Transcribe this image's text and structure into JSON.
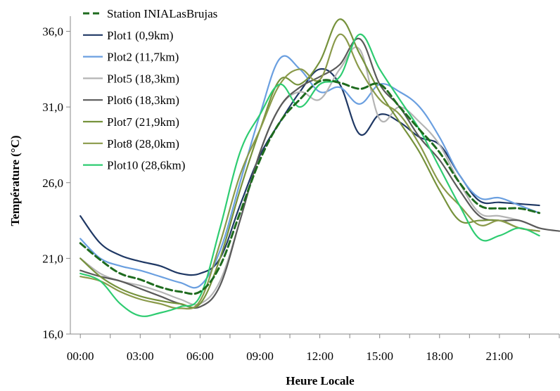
{
  "chart_data": {
    "type": "line",
    "title": "",
    "xlabel": "Heure Locale",
    "ylabel": "Température (°C)",
    "xlim": [
      -0.5,
      24.0
    ],
    "ylim": [
      16.0,
      37.0
    ],
    "x_ticks": [
      0,
      3,
      6,
      9,
      12,
      15,
      18,
      21
    ],
    "x_tick_labels": [
      "00:00",
      "03:00",
      "06:00",
      "09:00",
      "12:00",
      "15:00",
      "18:00",
      "21:00"
    ],
    "y_ticks": [
      16,
      21,
      26,
      31,
      36
    ],
    "y_tick_labels": [
      "16,0",
      "21,0",
      "26,0",
      "31,0",
      "36,0"
    ],
    "grid": false,
    "legend_position": "top-left",
    "series": [
      {
        "name": "Station INIALasBrujas",
        "color": "#1e6b1e",
        "dash": "dashed",
        "x": [
          0,
          1,
          2,
          3,
          4,
          5,
          6,
          7,
          8,
          9,
          10,
          11,
          12,
          13,
          14,
          15,
          16,
          17,
          18,
          19,
          20,
          21,
          22,
          23
        ],
        "y": [
          22.0,
          20.9,
          20.0,
          19.6,
          19.1,
          18.8,
          18.8,
          20.5,
          24.0,
          27.5,
          30.0,
          31.5,
          32.7,
          32.6,
          32.2,
          32.5,
          31.0,
          29.5,
          28.0,
          26.0,
          24.5,
          24.3,
          24.3,
          24.0
        ]
      },
      {
        "name": "Plot1 (0,9km)",
        "color": "#1f3864",
        "x": [
          0,
          1,
          2,
          3,
          4,
          5,
          6,
          7,
          8,
          9,
          10,
          11,
          12,
          13,
          14,
          15,
          16,
          17,
          18,
          19,
          20,
          21,
          22,
          23
        ],
        "y": [
          23.8,
          22.0,
          21.2,
          20.8,
          20.5,
          20.0,
          20.0,
          21.0,
          24.5,
          27.8,
          30.0,
          32.0,
          33.5,
          32.5,
          29.2,
          30.5,
          30.0,
          29.0,
          28.5,
          26.5,
          24.8,
          24.7,
          24.6,
          24.5
        ]
      },
      {
        "name": "Plot2 (11,7km)",
        "color": "#6a9fe0",
        "x": [
          0,
          1,
          2,
          3,
          4,
          5,
          6,
          7,
          8,
          9,
          10,
          11,
          12,
          13,
          14,
          15,
          16,
          17,
          18,
          19,
          20,
          21,
          22,
          23
        ],
        "y": [
          22.3,
          21.0,
          20.5,
          20.2,
          19.8,
          19.4,
          19.2,
          21.5,
          26.0,
          30.5,
          34.2,
          33.5,
          32.0,
          32.3,
          31.2,
          32.5,
          32.0,
          31.0,
          29.0,
          26.5,
          25.0,
          25.0,
          24.5,
          24.0
        ]
      },
      {
        "name": "Plot5 (18,3km)",
        "color": "#b4b4b4",
        "x": [
          0,
          1,
          2,
          3,
          4,
          5,
          6,
          7,
          8,
          9,
          10,
          11,
          12,
          13,
          14,
          15,
          16,
          17,
          18,
          19,
          20,
          21,
          22,
          23
        ],
        "y": [
          21.0,
          20.0,
          19.5,
          19.2,
          18.8,
          18.3,
          18.0,
          19.5,
          23.5,
          28.0,
          31.0,
          32.0,
          31.5,
          33.5,
          34.8,
          30.2,
          31.0,
          30.0,
          28.5,
          26.0,
          24.0,
          23.8,
          23.5,
          23.0
        ]
      },
      {
        "name": "Plot6 (18,3km)",
        "color": "#5a5a5a",
        "x": [
          0,
          1,
          2,
          3,
          4,
          5,
          6,
          7,
          8,
          9,
          10,
          11,
          12,
          13,
          14,
          15,
          16,
          17,
          18,
          19,
          20,
          21,
          22,
          23,
          24
        ],
        "y": [
          20.2,
          19.8,
          19.5,
          19.0,
          18.5,
          18.0,
          17.8,
          19.2,
          23.5,
          28.0,
          31.0,
          32.3,
          33.0,
          33.8,
          35.5,
          32.5,
          31.0,
          29.0,
          27.5,
          25.5,
          23.8,
          23.5,
          23.5,
          23.0,
          22.8
        ]
      },
      {
        "name": "Plot7 (21,9km)",
        "color": "#76923c",
        "x": [
          0,
          1,
          2,
          3,
          4,
          5,
          6,
          7,
          8,
          9,
          10,
          11,
          12,
          13,
          14,
          15,
          16,
          17,
          18,
          19,
          20,
          21,
          22,
          23
        ],
        "y": [
          21.0,
          19.8,
          19.0,
          18.5,
          18.2,
          18.0,
          18.0,
          21.0,
          25.5,
          29.5,
          32.8,
          32.5,
          34.0,
          36.8,
          34.5,
          32.0,
          30.0,
          28.0,
          25.5,
          23.5,
          23.5,
          23.5,
          23.0,
          22.8
        ]
      },
      {
        "name": "Plot8 (28,0km)",
        "color": "#8a9a4a",
        "x": [
          0,
          1,
          2,
          3,
          4,
          5,
          6,
          7,
          8,
          9,
          10,
          11,
          12,
          13,
          14,
          15,
          16,
          17,
          18,
          19,
          20,
          21,
          22,
          23
        ],
        "y": [
          19.8,
          19.5,
          18.8,
          18.3,
          18.0,
          17.7,
          18.2,
          22.0,
          26.5,
          29.5,
          32.5,
          33.5,
          32.8,
          35.8,
          33.5,
          31.5,
          30.5,
          28.5,
          26.0,
          24.5,
          23.2,
          23.5,
          23.0,
          22.8
        ]
      },
      {
        "name": "Plot10 (28,6km)",
        "color": "#2ecc71",
        "x": [
          0,
          1,
          2,
          3,
          4,
          5,
          6,
          7,
          8,
          9,
          10,
          11,
          12,
          13,
          14,
          15,
          16,
          17,
          18,
          19,
          20,
          21,
          22,
          23
        ],
        "y": [
          20.0,
          19.5,
          18.0,
          17.2,
          17.4,
          17.8,
          18.5,
          23.0,
          28.0,
          30.5,
          32.5,
          31.0,
          32.5,
          33.0,
          35.8,
          33.5,
          31.5,
          29.5,
          27.0,
          24.5,
          22.3,
          22.5,
          23.0,
          22.5
        ]
      }
    ]
  }
}
